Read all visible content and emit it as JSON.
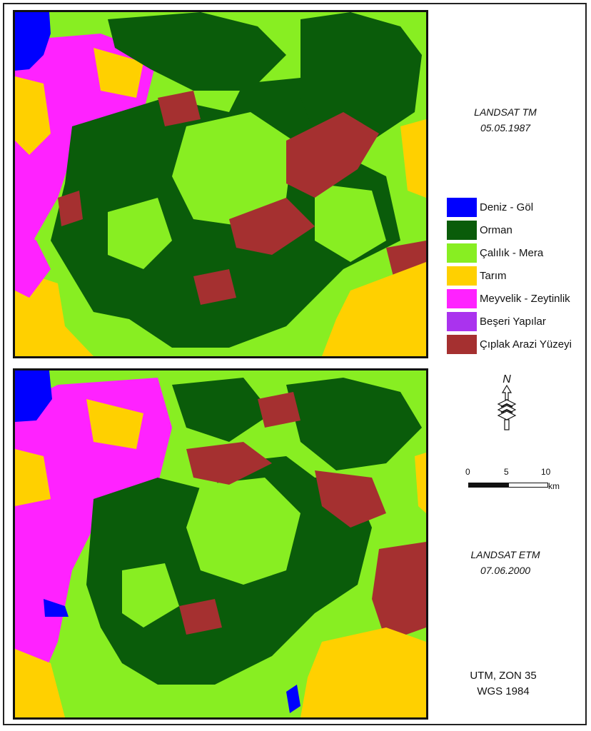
{
  "map_top": {
    "sensor": "LANDSAT TM",
    "date": "05.05.1987"
  },
  "map_bottom": {
    "sensor": "LANDSAT ETM",
    "date": "07.06.2000"
  },
  "legend": [
    {
      "label": "Deniz - Göl",
      "color": "#0000ff"
    },
    {
      "label": "Orman",
      "color": "#0a5c0a"
    },
    {
      "label": "Çalılık - Mera",
      "color": "#88ee22"
    },
    {
      "label": "Tarım",
      "color": "#ffd000"
    },
    {
      "label": "Meyvelik - Zeytinlik",
      "color": "#ff22ff"
    },
    {
      "label": "Beşeri Yapılar",
      "color": "#aa33ee"
    },
    {
      "label": "Çıplak Arazi Yüzeyi",
      "color": "#a53030"
    }
  ],
  "north_arrow": {
    "label": "N"
  },
  "scale_bar": {
    "ticks": [
      "0",
      "5",
      "10"
    ],
    "unit": "km"
  },
  "projection": {
    "line1": "UTM, ZON 35",
    "line2": "WGS 1984"
  }
}
